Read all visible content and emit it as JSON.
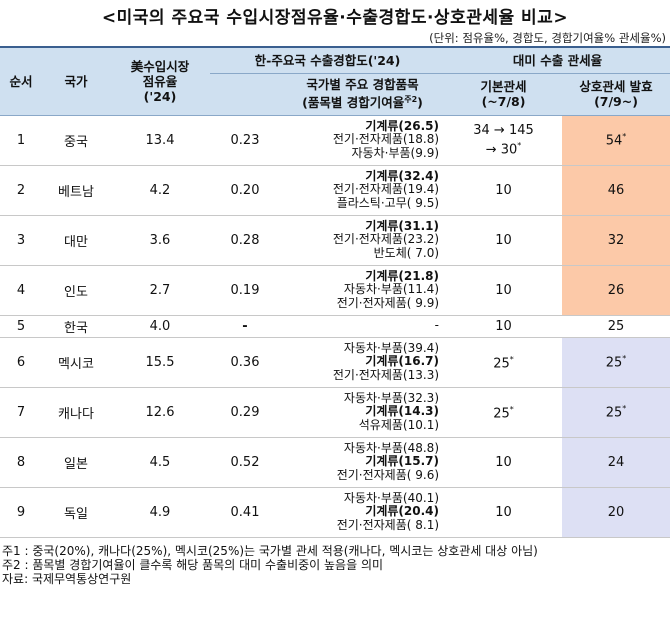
{
  "title": "<미국의 주요국 수입시장점유율·수출경합도·상호관세율 비교>",
  "unit": "(단위: 점유율%, 경합도, 경합기여율% 관세율%)",
  "headers": {
    "rank": "순서",
    "country": "국가",
    "share_line1": "美수입시장",
    "share_line2": "점유율",
    "share_line3": "('24)",
    "competition": "한-주요국 수출경합도('24)",
    "items_line1": "국가별 주요 경합품목",
    "items_line2": "(품목별 경합기여율",
    "items_sup": "주2",
    "items_line2_end": ")",
    "tariff": "대미 수출 관세율",
    "basic_line1": "기본관세",
    "basic_line2": "(~7/8)",
    "recip_line1": "상호관세 발효",
    "recip_line2": "(7/9~)"
  },
  "rows": [
    {
      "rank": "1",
      "country": "중국",
      "share": "13.4",
      "comp": "0.23",
      "items": [
        {
          "t": "기계류(26.5)",
          "b": true
        },
        {
          "t": "전기·전자제품(18.8)",
          "b": false
        },
        {
          "t": "자동차·부품(9.9)",
          "b": false
        }
      ],
      "basic": "34 → 145",
      "basic2": "→ 30",
      "basic_sup": "*",
      "recip": "54",
      "recip_sup": "*",
      "hl": "hot"
    },
    {
      "rank": "2",
      "country": "베트남",
      "share": "4.2",
      "comp": "0.20",
      "items": [
        {
          "t": "기계류(32.4)",
          "b": true
        },
        {
          "t": "전기·전자제품(19.4)",
          "b": false
        },
        {
          "t": "플라스틱·고무( 9.5)",
          "b": false
        }
      ],
      "basic": "10",
      "basic2": "",
      "basic_sup": "",
      "recip": "46",
      "recip_sup": "",
      "hl": "hot"
    },
    {
      "rank": "3",
      "country": "대만",
      "share": "3.6",
      "comp": "0.28",
      "items": [
        {
          "t": "기계류(31.1)",
          "b": true
        },
        {
          "t": "전기·전자제품(23.2)",
          "b": false
        },
        {
          "t": "반도체( 7.0)",
          "b": false
        }
      ],
      "basic": "10",
      "basic2": "",
      "basic_sup": "",
      "recip": "32",
      "recip_sup": "",
      "hl": "hot"
    },
    {
      "rank": "4",
      "country": "인도",
      "share": "2.7",
      "comp": "0.19",
      "items": [
        {
          "t": "기계류(21.8)",
          "b": true
        },
        {
          "t": "자동차·부품(11.4)",
          "b": false
        },
        {
          "t": "전기·전자제품( 9.9)",
          "b": false
        }
      ],
      "basic": "10",
      "basic2": "",
      "basic_sup": "",
      "recip": "26",
      "recip_sup": "",
      "hl": "hot"
    },
    {
      "rank": "5",
      "country": "한국",
      "share": "4.0",
      "comp": "-",
      "items": [
        {
          "t": "-",
          "b": false
        }
      ],
      "basic": "10",
      "basic2": "",
      "basic_sup": "",
      "recip": "25",
      "recip_sup": "",
      "hl": ""
    },
    {
      "rank": "6",
      "country": "멕시코",
      "share": "15.5",
      "comp": "0.36",
      "items": [
        {
          "t": "자동차·부품(39.4)",
          "b": false
        },
        {
          "t": "기계류(16.7)",
          "b": true
        },
        {
          "t": "전기·전자제품(13.3)",
          "b": false
        }
      ],
      "basic": "25",
      "basic2": "",
      "basic_sup": "*",
      "recip": "25",
      "recip_sup": "*",
      "hl": "cool"
    },
    {
      "rank": "7",
      "country": "캐나다",
      "share": "12.6",
      "comp": "0.29",
      "items": [
        {
          "t": "자동차·부품(32.3)",
          "b": false
        },
        {
          "t": "기계류(14.3)",
          "b": true
        },
        {
          "t": "석유제품(10.1)",
          "b": false
        }
      ],
      "basic": "25",
      "basic2": "",
      "basic_sup": "*",
      "recip": "25",
      "recip_sup": "*",
      "hl": "cool"
    },
    {
      "rank": "8",
      "country": "일본",
      "share": "4.5",
      "comp": "0.52",
      "items": [
        {
          "t": "자동차·부품(48.8)",
          "b": false
        },
        {
          "t": "기계류(15.7)",
          "b": true
        },
        {
          "t": "전기·전자제품( 9.6)",
          "b": false
        }
      ],
      "basic": "10",
      "basic2": "",
      "basic_sup": "",
      "recip": "24",
      "recip_sup": "",
      "hl": "cool"
    },
    {
      "rank": "9",
      "country": "독일",
      "share": "4.9",
      "comp": "0.41",
      "items": [
        {
          "t": "자동차·부품(40.1)",
          "b": false
        },
        {
          "t": "기계류(20.4)",
          "b": true
        },
        {
          "t": "전기·전자제품( 8.1)",
          "b": false
        }
      ],
      "basic": "10",
      "basic2": "",
      "basic_sup": "",
      "recip": "20",
      "recip_sup": "",
      "hl": "cool"
    }
  ],
  "notes": [
    "주1 : 중국(20%), 캐나다(25%), 멕시코(25%)는 국가별 관세 적용(캐나다, 멕시코는 상호관세 대상 아님)",
    "주2 : 품목별 경합기여율이 클수록 해당 품목의 대미 수출비중이 높음을 의미",
    "자료: 국제무역통상연구원"
  ]
}
